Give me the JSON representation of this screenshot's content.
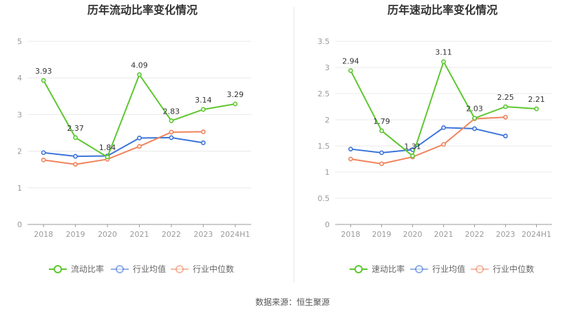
{
  "chart_data": [
    {
      "type": "line",
      "title": "历年流动比率变化情况",
      "categories": [
        "2018",
        "2019",
        "2020",
        "2021",
        "2022",
        "2023",
        "2024H1"
      ],
      "ylim": [
        0,
        5
      ],
      "yticks": [
        "0",
        "1",
        "2",
        "3",
        "4",
        "5"
      ],
      "series": [
        {
          "name": "流动比率",
          "color": "#5cc72f",
          "values": [
            3.93,
            2.37,
            1.84,
            4.09,
            2.83,
            3.14,
            3.29
          ],
          "labels": [
            "3.93",
            "2.37",
            "1.84",
            "4.09",
            "2.83",
            "3.14",
            "3.29"
          ]
        },
        {
          "name": "行业均值",
          "color": "#3b73d9",
          "values": [
            1.96,
            1.86,
            1.87,
            2.36,
            2.37,
            2.23,
            null
          ]
        },
        {
          "name": "行业中位数",
          "color": "#f0835b",
          "values": [
            1.76,
            1.64,
            1.78,
            2.13,
            2.52,
            2.53,
            null
          ]
        }
      ]
    },
    {
      "type": "line",
      "title": "历年速动比率变化情况",
      "categories": [
        "2018",
        "2019",
        "2020",
        "2021",
        "2022",
        "2023",
        "2024H1"
      ],
      "ylim": [
        0,
        3.5
      ],
      "yticks": [
        "0",
        "0.5",
        "1",
        "1.5",
        "2",
        "2.5",
        "3",
        "3.5"
      ],
      "series": [
        {
          "name": "速动比率",
          "color": "#5cc72f",
          "values": [
            2.94,
            1.79,
            1.31,
            3.11,
            2.03,
            2.25,
            2.21
          ],
          "labels": [
            "2.94",
            "1.79",
            "1.31",
            "3.11",
            "2.03",
            "2.25",
            "2.21"
          ]
        },
        {
          "name": "行业均值",
          "color": "#3b73d9",
          "values": [
            1.44,
            1.37,
            1.43,
            1.85,
            1.83,
            1.69,
            null
          ]
        },
        {
          "name": "行业中位数",
          "color": "#f0835b",
          "values": [
            1.25,
            1.16,
            1.29,
            1.53,
            2.02,
            2.05,
            null
          ]
        }
      ]
    }
  ],
  "source": "数据来源：恒生聚源"
}
